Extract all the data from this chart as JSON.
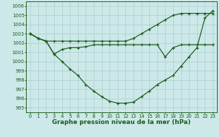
{
  "x": [
    0,
    1,
    2,
    3,
    4,
    5,
    6,
    7,
    8,
    9,
    10,
    11,
    12,
    13,
    14,
    15,
    16,
    17,
    18,
    19,
    20,
    21,
    22,
    23
  ],
  "line1": [
    1003.0,
    1002.5,
    1002.2,
    1002.2,
    1002.2,
    1002.2,
    1002.2,
    1002.2,
    1002.2,
    1002.2,
    1002.2,
    1002.2,
    1002.2,
    1002.5,
    1003.0,
    1003.5,
    1004.0,
    1004.5,
    1005.0,
    1005.2,
    1005.2,
    1005.2,
    1005.2,
    1005.2
  ],
  "line2": [
    1003.0,
    1002.5,
    1002.2,
    1000.8,
    1000.0,
    999.2,
    998.5,
    997.5,
    996.8,
    996.2,
    995.7,
    995.5,
    995.5,
    995.6,
    996.2,
    996.8,
    997.5,
    998.0,
    998.5,
    999.5,
    1000.5,
    1001.5,
    1004.7,
    1005.5
  ],
  "line3": [
    1003.0,
    1002.5,
    1002.2,
    1000.8,
    1001.3,
    1001.5,
    1001.5,
    1001.6,
    1001.8,
    1001.8,
    1001.8,
    1001.8,
    1001.8,
    1001.8,
    1001.8,
    1001.8,
    1001.8,
    1000.5,
    1001.5,
    1001.8,
    1001.8,
    1001.8,
    1001.8,
    1001.8
  ],
  "bg_color": "#cce8e8",
  "grid_color": "#aacccc",
  "line_color": "#1a5c1a",
  "marker": "+",
  "markersize": 3.5,
  "linewidth": 0.9,
  "xlabel": "Graphe pression niveau de la mer (hPa)",
  "xlabel_fontsize": 6.5,
  "ylim": [
    994.5,
    1006.5
  ],
  "yticks": [
    995,
    996,
    997,
    998,
    999,
    1000,
    1001,
    1002,
    1003,
    1004,
    1005,
    1006
  ],
  "xticks": [
    0,
    1,
    2,
    3,
    4,
    5,
    6,
    7,
    8,
    9,
    10,
    11,
    12,
    13,
    14,
    15,
    16,
    17,
    18,
    19,
    20,
    21,
    22,
    23
  ],
  "tick_fontsize": 5.0
}
